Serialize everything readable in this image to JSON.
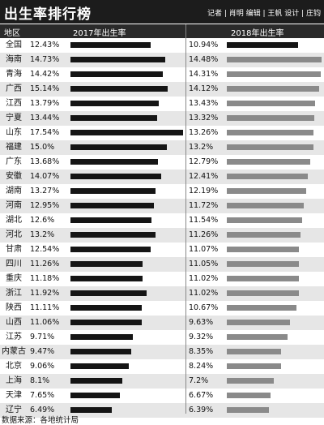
{
  "header": {
    "title": "出生率排行榜",
    "credits": "记者 | 肖明   编辑 | 王帆   设计 | 庄钧"
  },
  "columns": {
    "region": "地区",
    "y2017": "2017年出生率",
    "y2018": "2018年出生率"
  },
  "source": "数据来源：各地统计局",
  "colors": {
    "bar2017": "#151515",
    "bar2018_national": "#151515",
    "bar2018": "#8a8a8a"
  },
  "chart_data": {
    "type": "bar",
    "categories": [
      "全国",
      "海南",
      "青海",
      "广西",
      "江西",
      "宁夏",
      "山东",
      "福建",
      "广东",
      "安徽",
      "湖南",
      "河南",
      "湖北",
      "河北",
      "甘肃",
      "四川",
      "重庆",
      "浙江",
      "陕西",
      "山西",
      "江苏",
      "内蒙古",
      "北京",
      "上海",
      "天津",
      "辽宁"
    ],
    "series": [
      {
        "name": "2017年出生率",
        "values": [
          12.43,
          14.73,
          14.42,
          15.14,
          13.79,
          13.44,
          17.54,
          15.0,
          13.68,
          14.07,
          13.27,
          12.95,
          12.6,
          13.2,
          12.54,
          11.26,
          11.18,
          11.92,
          11.11,
          11.06,
          9.71,
          9.47,
          9.06,
          8.1,
          7.65,
          6.49
        ],
        "labels": [
          "12.43%",
          "14.73%",
          "14.42%",
          "15.14%",
          "13.79%",
          "13.44%",
          "17.54%",
          "15.0%",
          "13.68%",
          "14.07%",
          "13.27%",
          "12.95%",
          "12.6%",
          "13.2%",
          "12.54%",
          "11.26%",
          "11.18%",
          "11.92%",
          "11.11%",
          "11.06%",
          "9.71%",
          "9.47%",
          "9.06%",
          "8.1%",
          "7.65%",
          "6.49%"
        ]
      },
      {
        "name": "2018年出生率",
        "values": [
          10.94,
          14.48,
          14.31,
          14.12,
          13.43,
          13.32,
          13.26,
          13.2,
          12.79,
          12.41,
          12.19,
          11.72,
          11.54,
          11.26,
          11.07,
          11.05,
          11.02,
          11.02,
          10.67,
          9.63,
          9.32,
          8.35,
          8.24,
          7.2,
          6.67,
          6.39
        ],
        "labels": [
          "10.94%",
          "14.48%",
          "14.31%",
          "14.12%",
          "13.43%",
          "13.32%",
          "13.26%",
          "13.2%",
          "12.79%",
          "12.41%",
          "12.19%",
          "11.72%",
          "11.54%",
          "11.26%",
          "11.07%",
          "11.05%",
          "11.02%",
          "11.02%",
          "10.67%",
          "9.63%",
          "9.32%",
          "8.35%",
          "8.24%",
          "7.2%",
          "6.67%",
          "6.39%"
        ]
      }
    ],
    "xlim": [
      0,
      17.54
    ]
  }
}
